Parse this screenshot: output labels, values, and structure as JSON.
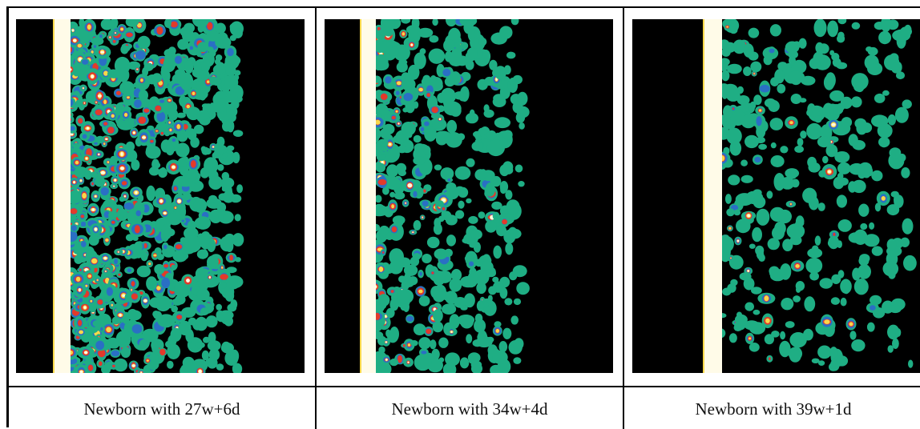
{
  "panels": [
    {
      "caption": "Newborn with 27w+6d",
      "density": "high",
      "colors": {
        "background": "#000000",
        "low": "#1fae84",
        "mid": "#2a6fc4",
        "high": "#e23a2a",
        "peak": "#f7d84a",
        "saturated": "#fffbe8"
      }
    },
    {
      "caption": "Newborn with 34w+4d",
      "density": "medium",
      "colors": {
        "background": "#000000",
        "low": "#1fae84",
        "mid": "#2a6fc4",
        "high": "#e23a2a",
        "peak": "#f7d84a",
        "saturated": "#fffbe8"
      }
    },
    {
      "caption": "Newborn with 39w+1d",
      "density": "low",
      "colors": {
        "background": "#000000",
        "low": "#1fae84",
        "mid": "#2a6fc4",
        "high": "#e23a2a",
        "peak": "#f7d84a",
        "saturated": "#fffbe8"
      }
    }
  ]
}
